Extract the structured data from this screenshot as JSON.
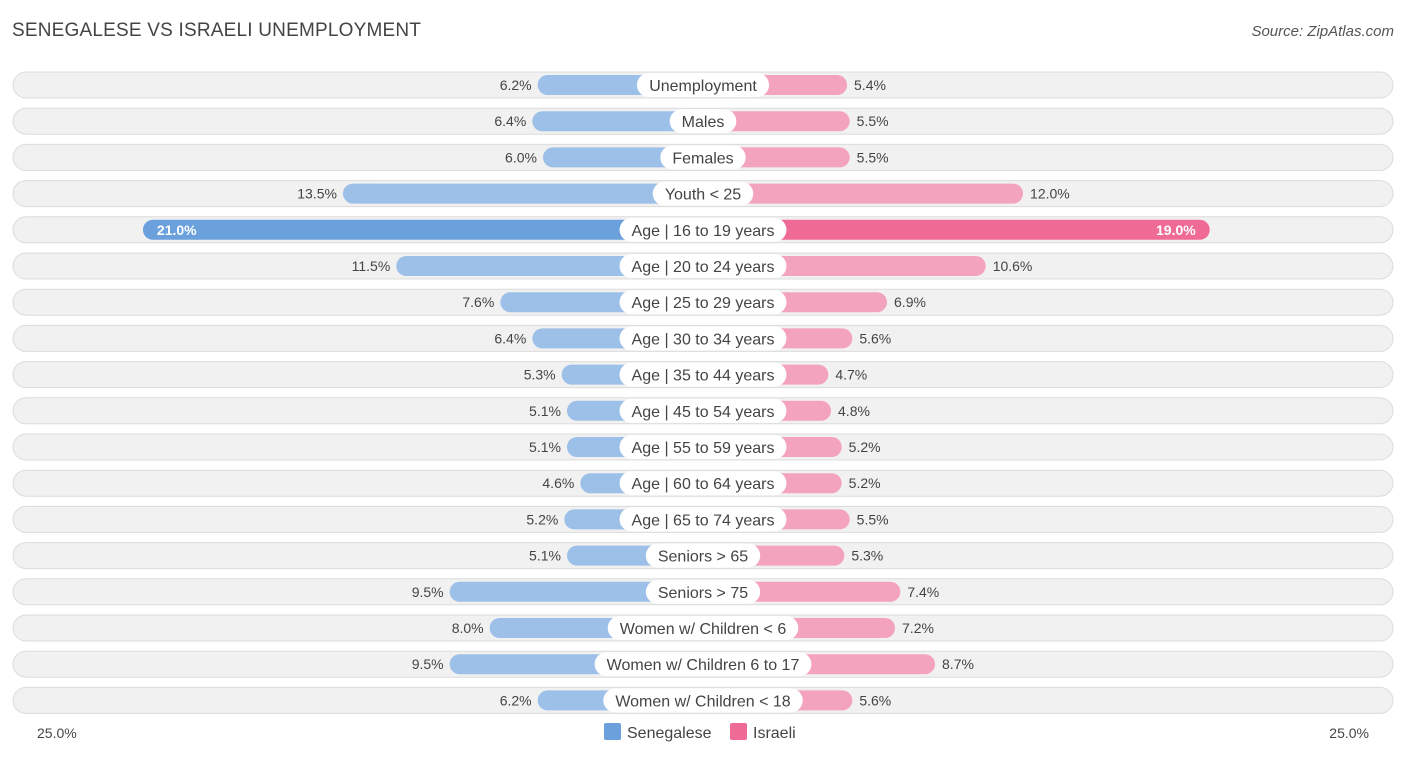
{
  "header": {
    "title": "SENEGALESE VS ISRAELI UNEMPLOYMENT",
    "source": "Source: ZipAtlas.com"
  },
  "colors": {
    "left_bar": "#9dc0e8",
    "left_bar_strong": "#6aa0dc",
    "right_bar": "#f4a3bf",
    "right_bar_strong": "#ef6b96"
  },
  "chart_data": {
    "type": "bar",
    "orientation": "horizontal-diverging",
    "title": "SENEGALESE VS ISRAELI UNEMPLOYMENT",
    "axis_max": 25.0,
    "axis_min_label": "25.0%",
    "axis_max_label": "25.0%",
    "categories": [
      "Unemployment",
      "Males",
      "Females",
      "Youth < 25",
      "Age | 16 to 19 years",
      "Age | 20 to 24 years",
      "Age | 25 to 29 years",
      "Age | 30 to 34 years",
      "Age | 35 to 44 years",
      "Age | 45 to 54 years",
      "Age | 55 to 59 years",
      "Age | 60 to 64 years",
      "Age | 65 to 74 years",
      "Seniors > 65",
      "Seniors > 75",
      "Women w/ Children < 6",
      "Women w/ Children 6 to 17",
      "Women w/ Children < 18"
    ],
    "series": [
      {
        "name": "Senegalese",
        "values": [
          6.2,
          6.4,
          6.0,
          13.5,
          21.0,
          11.5,
          7.6,
          6.4,
          5.3,
          5.1,
          5.1,
          4.6,
          5.2,
          5.1,
          9.5,
          8.0,
          9.5,
          6.2
        ],
        "labels": [
          "6.2%",
          "6.4%",
          "6.0%",
          "13.5%",
          "21.0%",
          "11.5%",
          "7.6%",
          "6.4%",
          "5.3%",
          "5.1%",
          "5.1%",
          "4.6%",
          "5.2%",
          "5.1%",
          "9.5%",
          "8.0%",
          "9.5%",
          "6.2%"
        ]
      },
      {
        "name": "Israeli",
        "values": [
          5.4,
          5.5,
          5.5,
          12.0,
          19.0,
          10.6,
          6.9,
          5.6,
          4.7,
          4.8,
          5.2,
          5.2,
          5.5,
          5.3,
          7.4,
          7.2,
          8.7,
          5.6
        ],
        "labels": [
          "5.4%",
          "5.5%",
          "5.5%",
          "12.0%",
          "19.0%",
          "10.6%",
          "6.9%",
          "5.6%",
          "4.7%",
          "4.8%",
          "5.2%",
          "5.2%",
          "5.5%",
          "5.3%",
          "7.4%",
          "7.2%",
          "8.7%",
          "5.6%"
        ]
      }
    ],
    "legend": [
      "Senegalese",
      "Israeli"
    ],
    "legend_position": "bottom-center"
  }
}
